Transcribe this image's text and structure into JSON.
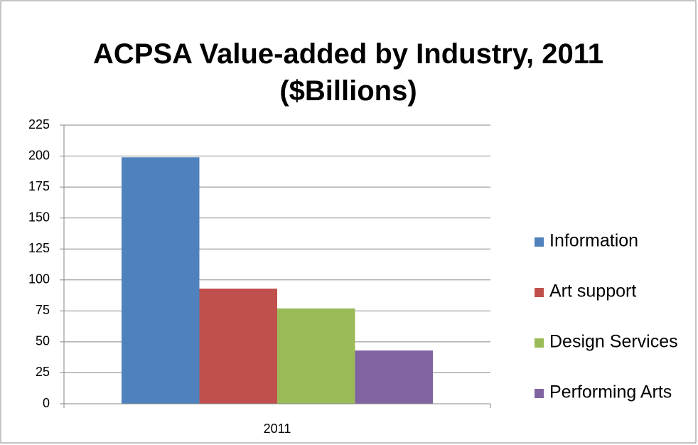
{
  "chart_data": {
    "type": "bar",
    "title": "ACPSA Value-added by Industry, 2011 ($Billions)",
    "categories": [
      "2011"
    ],
    "series": [
      {
        "name": "Information",
        "color": "#4f81bd",
        "values": [
          199
        ]
      },
      {
        "name": "Art support",
        "color": "#c0504d",
        "values": [
          93
        ]
      },
      {
        "name": "Design Services",
        "color": "#9bbb59",
        "values": [
          77
        ]
      },
      {
        "name": "Performing Arts",
        "color": "#8064a2",
        "values": [
          43
        ]
      }
    ],
    "ylim": [
      0,
      225
    ],
    "yticks": [
      0,
      25,
      50,
      75,
      100,
      125,
      150,
      175,
      200,
      225
    ],
    "grid": true,
    "legend": "right"
  }
}
